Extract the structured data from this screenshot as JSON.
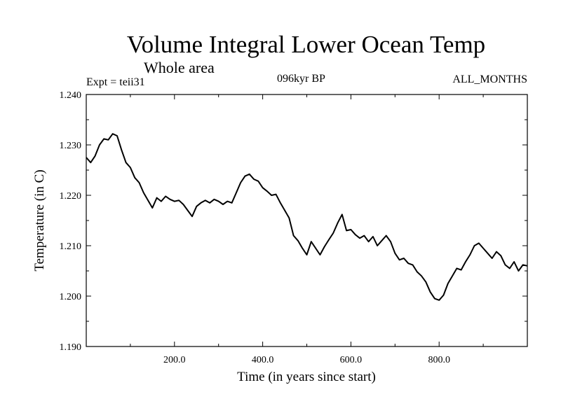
{
  "chart_data": {
    "type": "line",
    "title": "Volume Integral Lower Ocean Temp",
    "subtitle": "Whole area",
    "annotations": {
      "experiment": "Expt = teii31",
      "period": "096kyr BP",
      "months": "ALL_MONTHS"
    },
    "xlabel": "Time (in years since start)",
    "ylabel": "Temperature (in C)",
    "xlim": [
      0,
      1000
    ],
    "ylim": [
      1.19,
      1.24
    ],
    "x_ticks": [
      200,
      400,
      600,
      800
    ],
    "x_tick_labels": [
      "200.0",
      "400.0",
      "600.0",
      "800.0"
    ],
    "y_ticks": [
      1.19,
      1.2,
      1.21,
      1.22,
      1.23,
      1.24
    ],
    "y_tick_labels": [
      "1.190",
      "1.200",
      "1.210",
      "1.220",
      "1.230",
      "1.240"
    ],
    "grid": false,
    "legend": "none",
    "line_color": "#000000",
    "series": [
      {
        "x": [
          0,
          10,
          20,
          30,
          40,
          50,
          60,
          70,
          80,
          90,
          100,
          110,
          120,
          130,
          140,
          150,
          160,
          170,
          180,
          190,
          200,
          210,
          220,
          230,
          240,
          250,
          260,
          270,
          280,
          290,
          300,
          310,
          320,
          330,
          340,
          350,
          360,
          370,
          380,
          390,
          400,
          410,
          420,
          430,
          440,
          450,
          460,
          470,
          480,
          490,
          500,
          510,
          520,
          530,
          540,
          550,
          560,
          570,
          580,
          590,
          600,
          610,
          620,
          630,
          640,
          650,
          660,
          670,
          680,
          690,
          700,
          710,
          720,
          730,
          740,
          750,
          760,
          770,
          780,
          790,
          800,
          810,
          820,
          830,
          840,
          850,
          860,
          870,
          880,
          890,
          900,
          910,
          920,
          930,
          940,
          950,
          960,
          970,
          980,
          990,
          1000
        ],
        "values": [
          1.2275,
          1.2265,
          1.2278,
          1.23,
          1.2312,
          1.231,
          1.2322,
          1.2318,
          1.229,
          1.2265,
          1.2255,
          1.2235,
          1.2225,
          1.2205,
          1.219,
          1.2175,
          1.2195,
          1.2188,
          1.2198,
          1.2192,
          1.2188,
          1.219,
          1.2182,
          1.217,
          1.2158,
          1.2178,
          1.2185,
          1.219,
          1.2185,
          1.2192,
          1.2188,
          1.2182,
          1.2188,
          1.2185,
          1.2205,
          1.2225,
          1.2238,
          1.2242,
          1.2232,
          1.2228,
          1.2215,
          1.2208,
          1.22,
          1.2202,
          1.2185,
          1.217,
          1.2155,
          1.212,
          1.211,
          1.2095,
          1.2082,
          1.2108,
          1.2095,
          1.2082,
          1.2098,
          1.2112,
          1.2125,
          1.2145,
          1.2162,
          1.213,
          1.2132,
          1.2122,
          1.2115,
          1.212,
          1.2108,
          1.2118,
          1.21,
          1.211,
          1.212,
          1.2108,
          1.2085,
          1.2072,
          1.2075,
          1.2065,
          1.2062,
          1.2048,
          1.204,
          1.2028,
          1.2008,
          1.1995,
          1.1992,
          1.2002,
          1.2025,
          1.204,
          1.2055,
          1.2052,
          1.2068,
          1.2082,
          1.21,
          1.2105,
          1.2095,
          1.2085,
          1.2075,
          1.2088,
          1.208,
          1.2062,
          1.2055,
          1.2068,
          1.205,
          1.2062,
          1.206
        ]
      }
    ]
  }
}
